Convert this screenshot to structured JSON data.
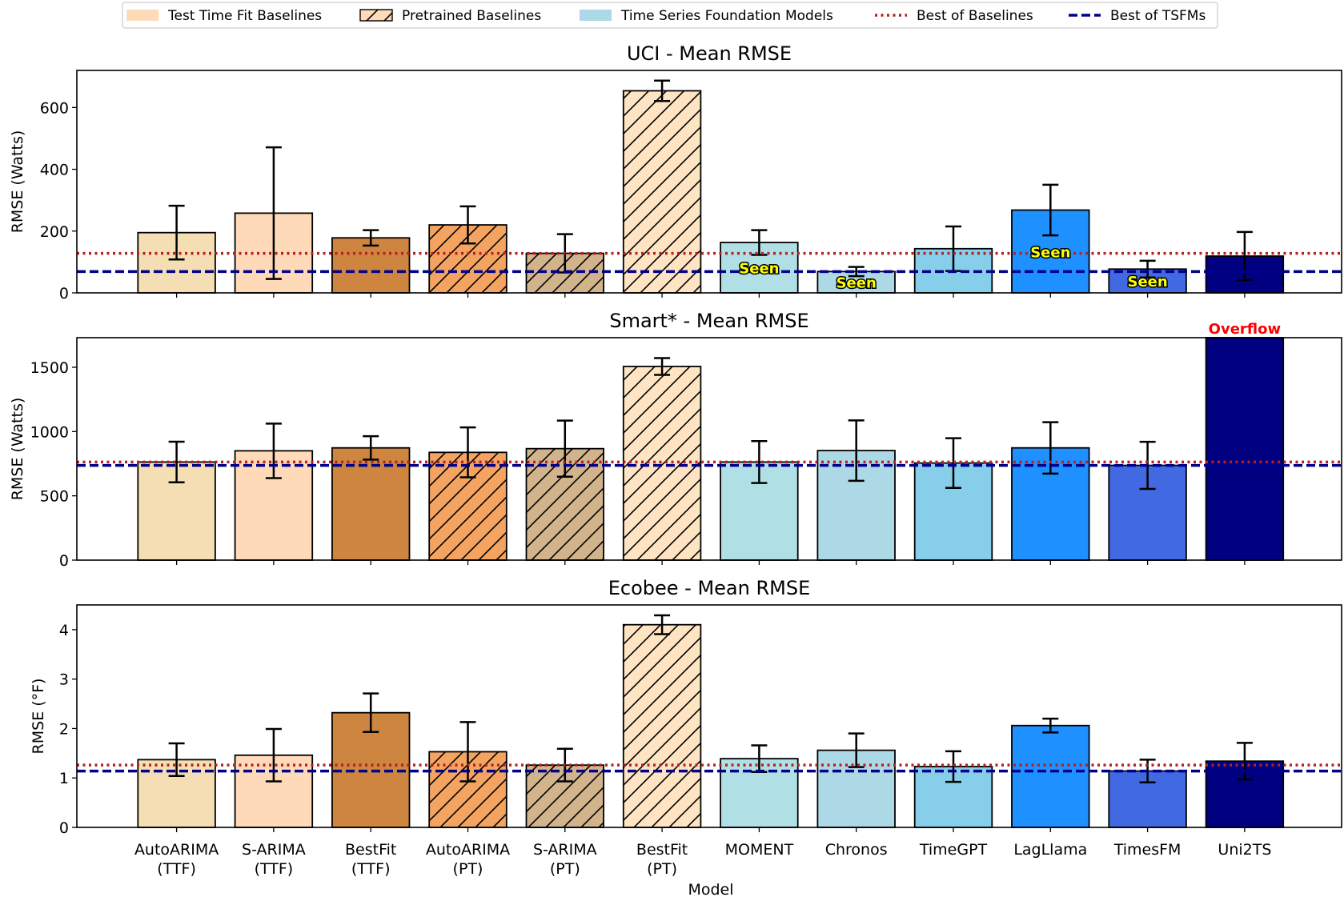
{
  "chart_data": {
    "type": "bar",
    "legend": {
      "placement": "top-center",
      "entries": [
        {
          "label": "Test Time Fit Baselines",
          "kind": "patch",
          "color": "#FFDAB9",
          "hatch": false
        },
        {
          "label": "Pretrained Baselines",
          "kind": "patch",
          "color": "#FFDAB9",
          "hatch": true
        },
        {
          "label": "Time Series Foundation Models",
          "kind": "patch",
          "color": "#ADD8E6",
          "hatch": false
        },
        {
          "label": "Best of Baselines",
          "kind": "line",
          "color": "#B22222",
          "style": "dotted"
        },
        {
          "label": "Best of TSFMs",
          "kind": "line",
          "color": "#00008B",
          "style": "dashed"
        }
      ]
    },
    "xlabel": "Model",
    "categories": [
      "AutoARIMA\n(TTF)",
      "S-ARIMA\n(TTF)",
      "BestFit\n(TTF)",
      "AutoARIMA\n(PT)",
      "S-ARIMA\n(PT)",
      "BestFit\n(PT)",
      "MOMENT",
      "Chronos",
      "TimeGPT",
      "LagLlama",
      "TimesFM",
      "Uni2TS"
    ],
    "bar_colors": [
      "#F5DEB3",
      "#FFDAB9",
      "#CD853F",
      "#F4A460",
      "#D2B48C",
      "#FFE4C4",
      "#B0E0E6",
      "#ADD8E6",
      "#87CEEB",
      "#1E90FF",
      "#4169E1",
      "#000080"
    ],
    "hatched": [
      false,
      false,
      false,
      true,
      true,
      true,
      false,
      false,
      false,
      false,
      false,
      false
    ],
    "panels": [
      {
        "title": "UCI - Mean RMSE",
        "ylabel": "RMSE (Watts)",
        "ylim": [
          0,
          720
        ],
        "yticks": [
          0,
          200,
          400,
          600
        ],
        "values": [
          195,
          258,
          178,
          220,
          128,
          654,
          163,
          69,
          143,
          268,
          77,
          119
        ],
        "errors": [
          87,
          213,
          25,
          60,
          62,
          33,
          40,
          15,
          72,
          82,
          27,
          78
        ],
        "best_baselines": 128,
        "best_tsfms": 69,
        "annotations": [
          {
            "category_index": 6,
            "text": "Seen"
          },
          {
            "category_index": 7,
            "text": "Seen"
          },
          {
            "category_index": 9,
            "text": "Seen"
          },
          {
            "category_index": 10,
            "text": "Seen"
          }
        ],
        "overflow": []
      },
      {
        "title": "Smart* - Mean RMSE",
        "ylabel": "RMSE (Watts)",
        "ylim": [
          0,
          1730
        ],
        "yticks": [
          0,
          500,
          1000,
          1500
        ],
        "values": [
          763,
          850,
          873,
          838,
          867,
          1506,
          763,
          852,
          755,
          873,
          737,
          null
        ],
        "errors": [
          158,
          212,
          91,
          194,
          218,
          65,
          163,
          235,
          193,
          200,
          183,
          null
        ],
        "best_baselines": 763,
        "best_tsfms": 737,
        "annotations": [],
        "overflow": [
          {
            "category_index": 11,
            "text": "Overflow"
          }
        ]
      },
      {
        "title": "Ecobee - Mean RMSE",
        "ylabel": "RMSE (°F)",
        "ylim": [
          0,
          4.5
        ],
        "yticks": [
          0,
          1,
          2,
          3,
          4
        ],
        "values": [
          1.37,
          1.46,
          2.32,
          1.53,
          1.26,
          4.1,
          1.39,
          1.56,
          1.23,
          2.06,
          1.14,
          1.34
        ],
        "errors": [
          0.33,
          0.53,
          0.39,
          0.6,
          0.33,
          0.19,
          0.27,
          0.34,
          0.31,
          0.14,
          0.23,
          0.37
        ],
        "best_baselines": 1.26,
        "best_tsfms": 1.14,
        "annotations": [],
        "overflow": []
      }
    ]
  }
}
